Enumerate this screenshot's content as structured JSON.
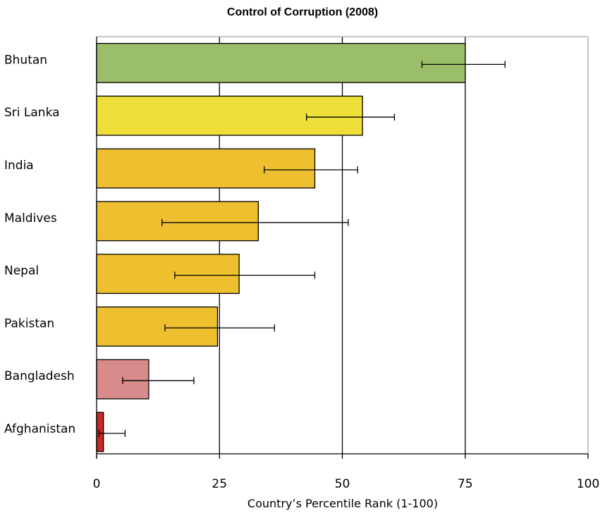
{
  "chart_data": {
    "type": "bar",
    "orientation": "horizontal",
    "title": "Control of Corruption (2008)",
    "xlabel": "Country’s Percentile Rank (1-100)",
    "ylabel": "",
    "xlim": [
      0,
      100
    ],
    "xticks": [
      0,
      25,
      50,
      75,
      100
    ],
    "grid": "vertical lines at major ticks",
    "legend": "none",
    "categories": [
      "Bhutan",
      "Sri Lanka",
      "India",
      "Maldives",
      "Nepal",
      "Pakistan",
      "Bangladesh",
      "Afghanistan"
    ],
    "values": [
      75.0,
      54.1,
      44.4,
      32.9,
      29.0,
      24.6,
      10.6,
      1.4
    ],
    "error_low": [
      66.2,
      42.7,
      34.1,
      13.3,
      15.9,
      13.9,
      5.3,
      0.5
    ],
    "error_high": [
      83.1,
      60.6,
      53.1,
      51.2,
      44.4,
      36.2,
      19.8,
      5.8
    ],
    "colors": [
      "#9bbe6b",
      "#eedf3a",
      "#eec02f",
      "#eec02f",
      "#eec02f",
      "#eec02f",
      "#d98a8a",
      "#c52a25"
    ]
  }
}
